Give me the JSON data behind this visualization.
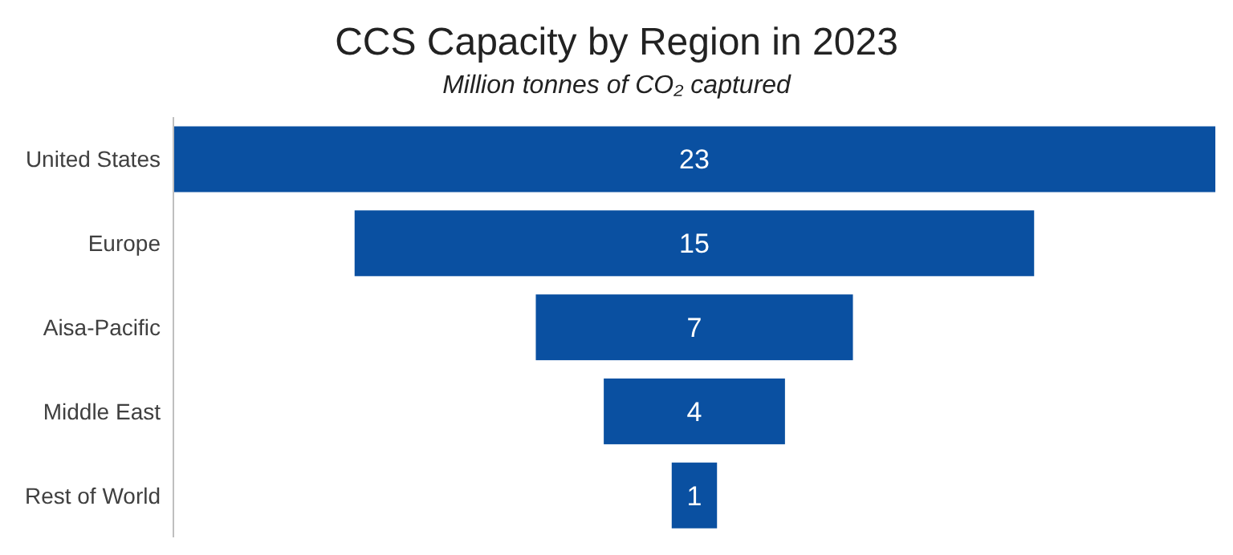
{
  "chart_data": {
    "type": "other",
    "title": "CCS Capacity by Region in 2023",
    "subtitle": "Million tonnes of CO₂ captured",
    "categories": [
      "United States",
      "Europe",
      "Aisa-Pacific",
      "Middle East",
      "Rest of World"
    ],
    "values": [
      23,
      15,
      7,
      4,
      1
    ],
    "color": "#0a50a1",
    "data_labels": true
  }
}
